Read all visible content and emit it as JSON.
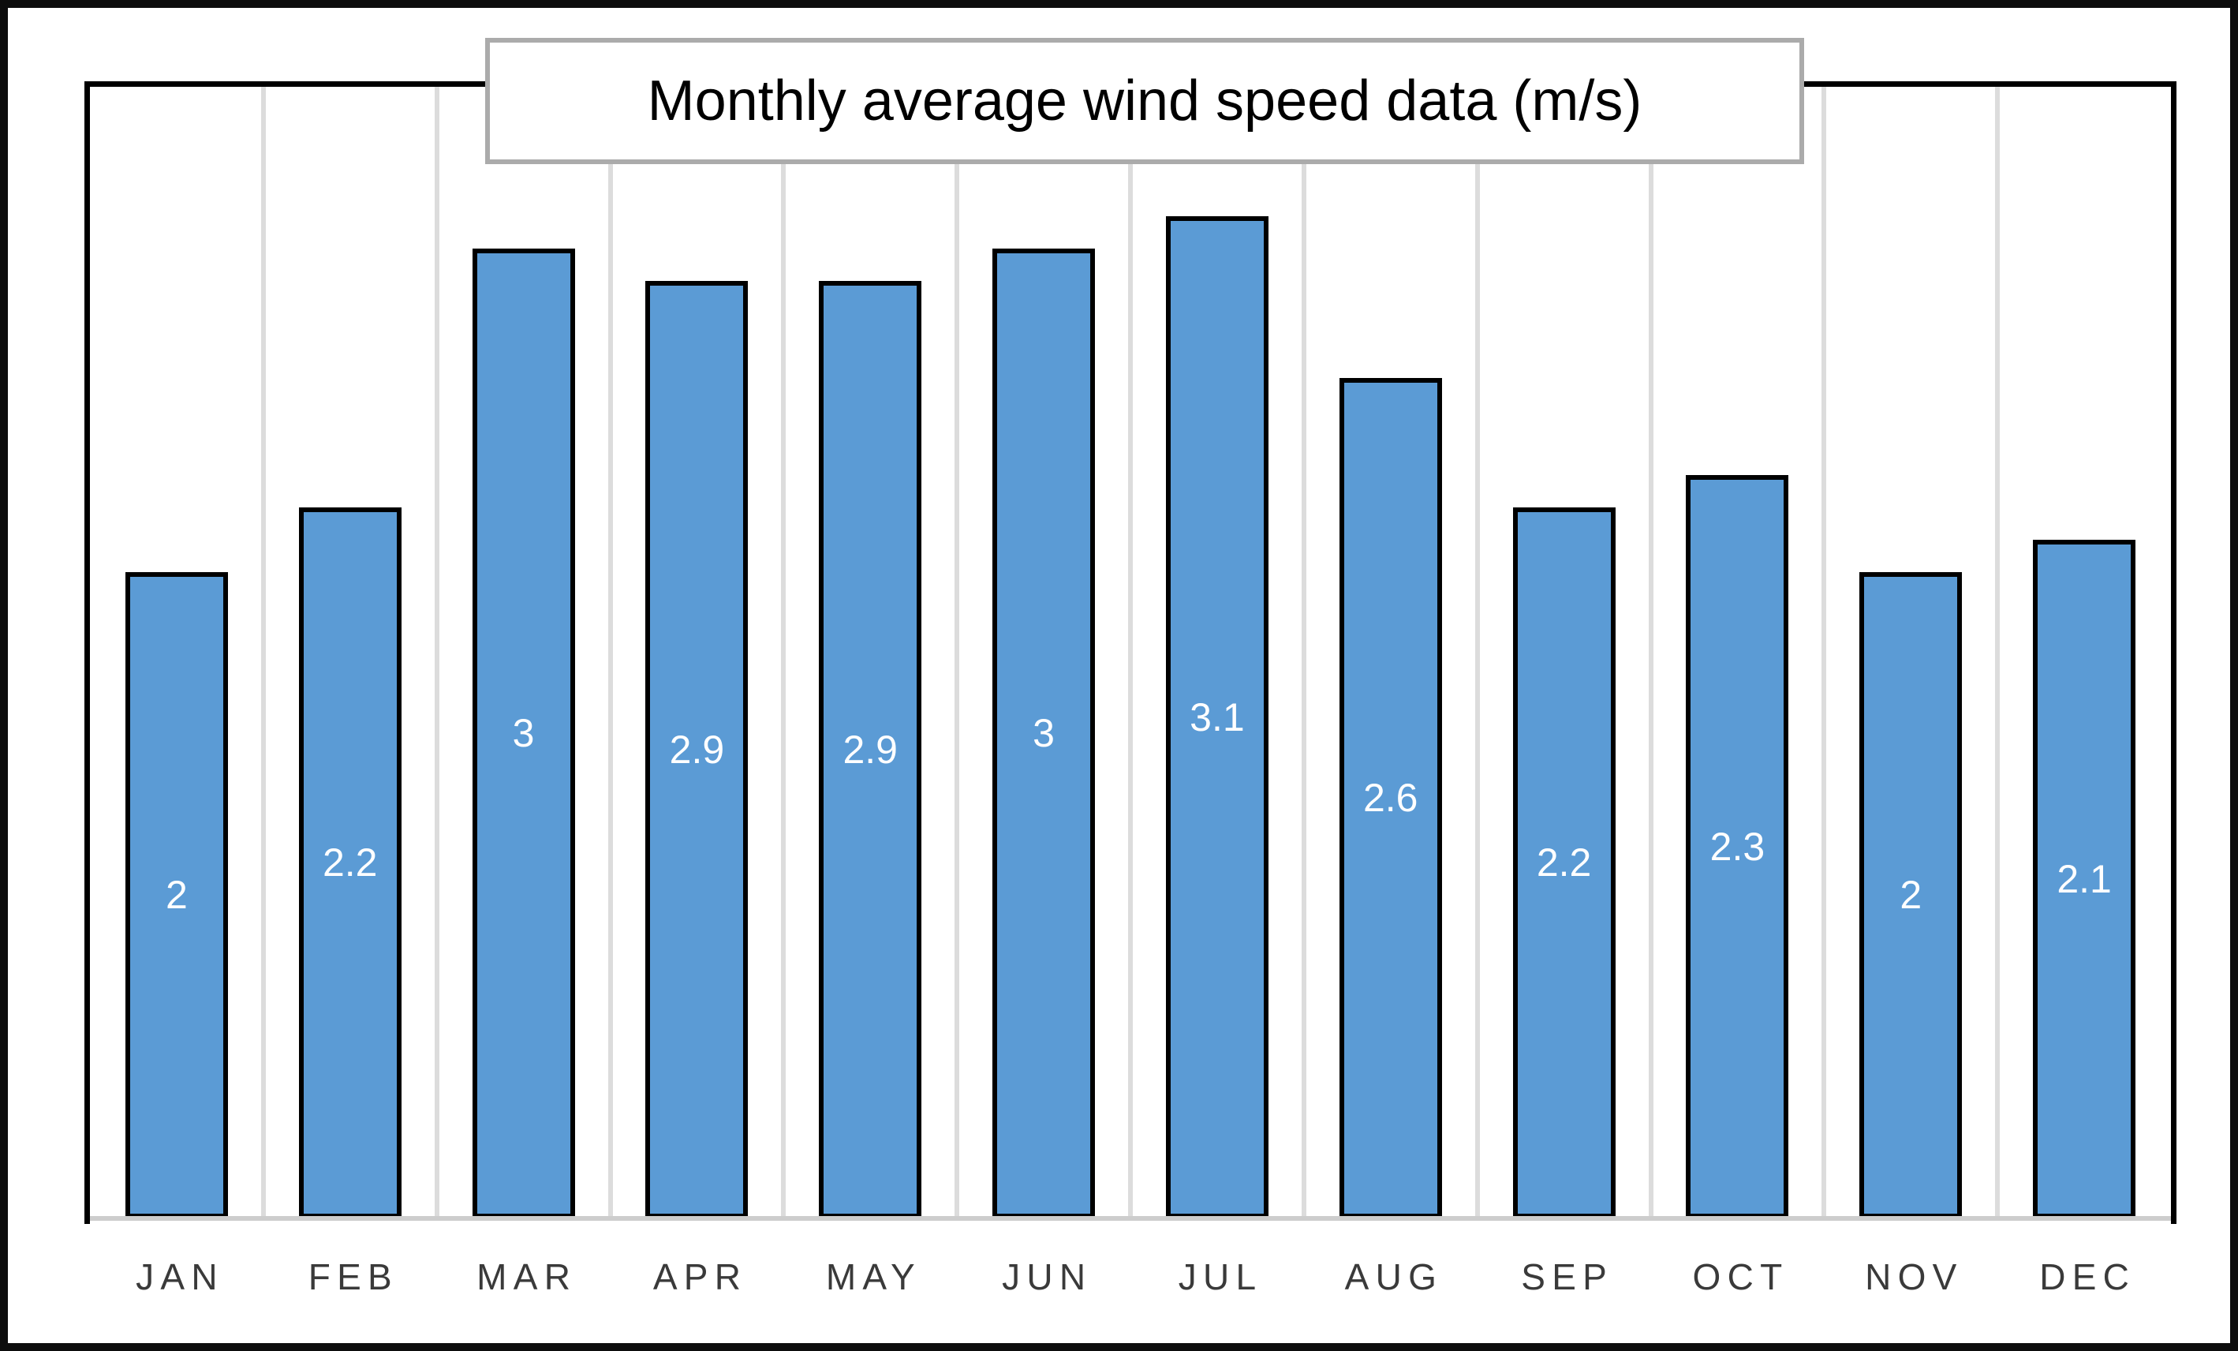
{
  "chart_data": {
    "type": "bar",
    "title": "Monthly average wind speed data (m/s)",
    "categories": [
      "JAN",
      "FEB",
      "MAR",
      "APR",
      "MAY",
      "JUN",
      "JUL",
      "AUG",
      "SEP",
      "OCT",
      "NOV",
      "DEC"
    ],
    "values": [
      2,
      2.2,
      3,
      2.9,
      2.9,
      3,
      3.1,
      2.6,
      2.2,
      2.3,
      2,
      2.1
    ],
    "value_labels": [
      "2",
      "2.2",
      "3",
      "2.9",
      "2.9",
      "3",
      "3.1",
      "2.6",
      "2.2",
      "2.3",
      "2",
      "2.1"
    ],
    "xlabel": "",
    "ylabel": "",
    "ylim": [
      0,
      3.5
    ],
    "grid": "vertical gridlines between categories, no horizontal gridlines",
    "legend": "none",
    "y_axis_ticks": "hidden",
    "data_label_position": "center of bar",
    "colors": {
      "bar_fill": "#5B9BD5",
      "bar_border": "#000000",
      "data_label_text": "#FFFFFF",
      "gridline": "#DCDCDC",
      "axis_baseline": "#CDCDCD",
      "month_label_text": "#3A3A3A",
      "title_text": "#000000",
      "title_box_border": "#ABABAB",
      "plot_border": "#000000",
      "outer_frame": "#0D0D0D"
    }
  }
}
